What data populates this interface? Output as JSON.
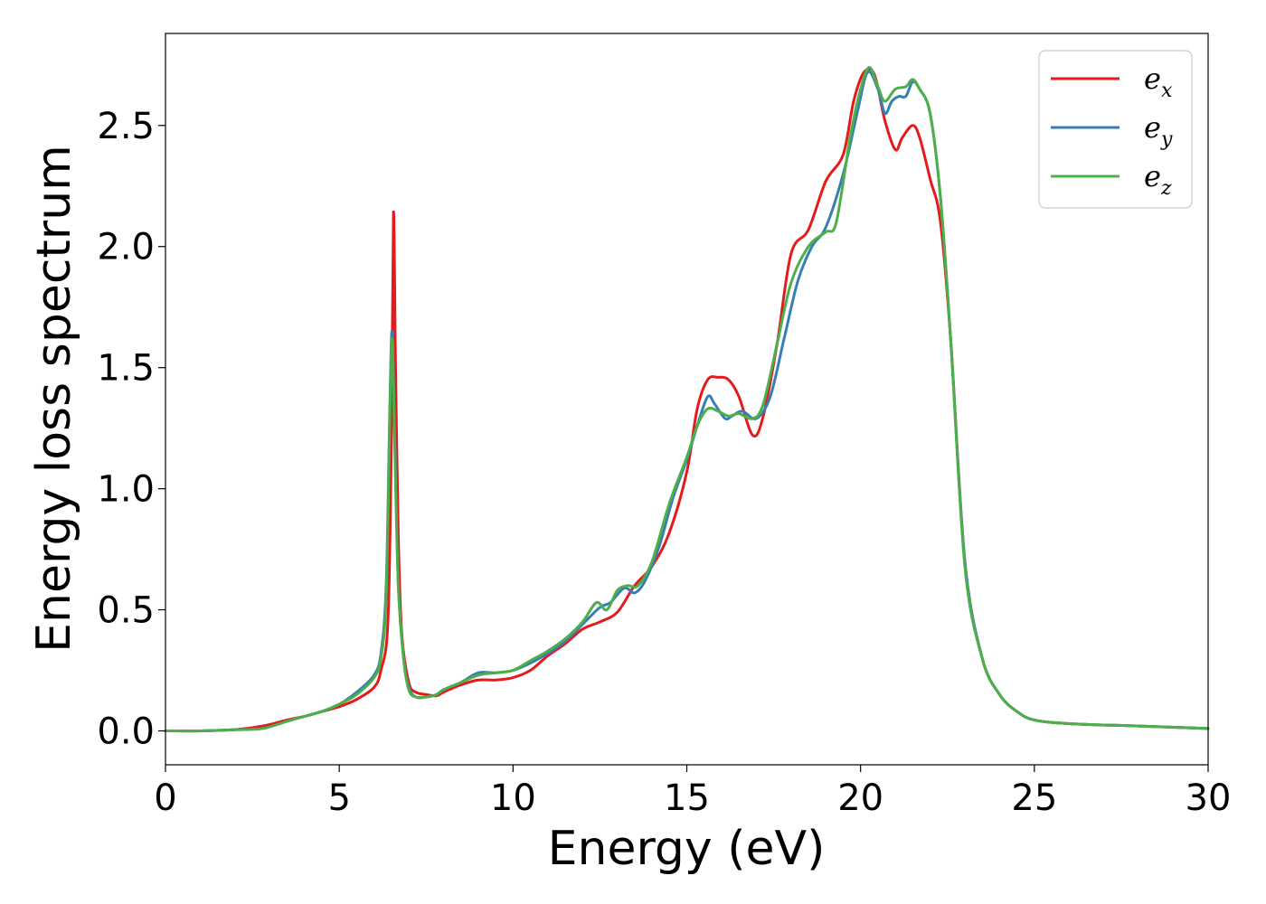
{
  "chart_data": {
    "type": "line",
    "title": "",
    "xlabel": "Energy (eV)",
    "ylabel": "Energy loss spectrum",
    "xlim": [
      0,
      30
    ],
    "ylim": [
      -0.14,
      2.88
    ],
    "xticks": [
      0,
      5,
      10,
      15,
      20,
      25,
      30
    ],
    "xtick_labels": [
      "0",
      "5",
      "10",
      "15",
      "20",
      "25",
      "30"
    ],
    "yticks": [
      0.0,
      0.5,
      1.0,
      1.5,
      2.0,
      2.5
    ],
    "ytick_labels": [
      "0.0",
      "0.5",
      "1.0",
      "1.5",
      "2.0",
      "2.5"
    ],
    "grid": false,
    "legend_position": "top-right",
    "series": [
      {
        "name": "e_x",
        "legend_base": "e",
        "legend_sub": "x",
        "color": "#e41a1c",
        "x": [
          0,
          1,
          2,
          2.8,
          3.5,
          4.0,
          4.5,
          5.0,
          5.5,
          6.0,
          6.2,
          6.4,
          6.5,
          6.56,
          6.62,
          6.7,
          6.8,
          7.0,
          7.2,
          7.5,
          7.8,
          8.0,
          8.5,
          9.0,
          9.5,
          10.0,
          10.5,
          11.0,
          11.5,
          12.0,
          12.5,
          13.0,
          13.5,
          14.0,
          14.5,
          15.0,
          15.3,
          15.6,
          15.9,
          16.2,
          16.5,
          16.9,
          17.2,
          17.6,
          18.0,
          18.5,
          19.0,
          19.5,
          19.8,
          20.1,
          20.4,
          20.7,
          21.0,
          21.2,
          21.5,
          21.7,
          22.0,
          22.3,
          22.6,
          23.0,
          23.5,
          24.0,
          24.5,
          25.0,
          26.0,
          28.0,
          30.0
        ],
        "y": [
          0.0,
          0.0,
          0.005,
          0.02,
          0.045,
          0.06,
          0.08,
          0.1,
          0.13,
          0.18,
          0.25,
          0.45,
          1.2,
          2.14,
          1.5,
          0.8,
          0.4,
          0.2,
          0.16,
          0.15,
          0.145,
          0.16,
          0.19,
          0.21,
          0.21,
          0.22,
          0.25,
          0.31,
          0.36,
          0.42,
          0.45,
          0.49,
          0.6,
          0.68,
          0.82,
          1.07,
          1.33,
          1.45,
          1.46,
          1.45,
          1.38,
          1.22,
          1.3,
          1.6,
          1.97,
          2.07,
          2.27,
          2.38,
          2.6,
          2.72,
          2.71,
          2.52,
          2.4,
          2.45,
          2.5,
          2.45,
          2.28,
          2.1,
          1.6,
          0.7,
          0.3,
          0.15,
          0.08,
          0.045,
          0.03,
          0.02,
          0.01
        ]
      },
      {
        "name": "e_y",
        "legend_base": "e",
        "legend_sub": "y",
        "color": "#377eb8",
        "x": [
          0,
          1,
          2,
          2.8,
          3.5,
          4.0,
          4.5,
          5.0,
          5.5,
          6.0,
          6.2,
          6.35,
          6.45,
          6.52,
          6.6,
          6.7,
          6.85,
          7.0,
          7.2,
          7.5,
          7.8,
          8.0,
          8.5,
          9.0,
          9.5,
          10.0,
          10.5,
          11.0,
          11.5,
          12.0,
          12.5,
          12.8,
          13.2,
          13.5,
          13.8,
          14.2,
          14.6,
          15.0,
          15.3,
          15.6,
          15.8,
          16.1,
          16.3,
          16.6,
          17.0,
          17.4,
          17.8,
          18.2,
          18.6,
          19.0,
          19.5,
          19.9,
          20.2,
          20.5,
          20.7,
          20.9,
          21.1,
          21.3,
          21.5,
          21.7,
          22.0,
          22.3,
          22.6,
          23.0,
          23.5,
          24.0,
          24.5,
          25.0,
          26.0,
          28.0,
          30.0
        ],
        "y": [
          0.0,
          0.0,
          0.005,
          0.01,
          0.04,
          0.06,
          0.08,
          0.11,
          0.16,
          0.23,
          0.32,
          0.6,
          1.3,
          1.65,
          1.2,
          0.6,
          0.3,
          0.18,
          0.14,
          0.14,
          0.15,
          0.17,
          0.2,
          0.24,
          0.24,
          0.25,
          0.28,
          0.32,
          0.37,
          0.44,
          0.51,
          0.53,
          0.59,
          0.57,
          0.62,
          0.76,
          0.96,
          1.12,
          1.26,
          1.38,
          1.35,
          1.29,
          1.3,
          1.32,
          1.29,
          1.38,
          1.62,
          1.86,
          2.0,
          2.08,
          2.3,
          2.55,
          2.72,
          2.65,
          2.55,
          2.6,
          2.62,
          2.62,
          2.68,
          2.65,
          2.55,
          2.2,
          1.6,
          0.7,
          0.3,
          0.15,
          0.08,
          0.045,
          0.03,
          0.02,
          0.01
        ]
      },
      {
        "name": "e_z",
        "legend_base": "e",
        "legend_sub": "z",
        "color": "#4daf4a",
        "x": [
          0,
          1,
          2,
          2.8,
          3.5,
          4.0,
          4.5,
          5.0,
          5.5,
          6.0,
          6.2,
          6.35,
          6.45,
          6.52,
          6.6,
          6.7,
          6.85,
          7.0,
          7.2,
          7.5,
          7.8,
          8.0,
          8.5,
          9.0,
          9.5,
          10.0,
          10.5,
          11.0,
          11.5,
          12.0,
          12.4,
          12.7,
          13.0,
          13.3,
          13.6,
          14.0,
          14.5,
          15.0,
          15.3,
          15.6,
          15.9,
          16.2,
          16.5,
          16.9,
          17.2,
          17.6,
          18.0,
          18.5,
          19.0,
          19.3,
          19.7,
          20.0,
          20.25,
          20.5,
          20.7,
          21.0,
          21.3,
          21.5,
          21.7,
          22.0,
          22.3,
          22.6,
          23.0,
          23.5,
          24.0,
          24.5,
          25.0,
          26.0,
          28.0,
          30.0
        ],
        "y": [
          0.0,
          0.0,
          0.005,
          0.01,
          0.04,
          0.06,
          0.08,
          0.11,
          0.15,
          0.22,
          0.3,
          0.55,
          1.25,
          1.62,
          1.15,
          0.6,
          0.3,
          0.17,
          0.14,
          0.14,
          0.15,
          0.17,
          0.2,
          0.23,
          0.24,
          0.25,
          0.29,
          0.33,
          0.38,
          0.45,
          0.53,
          0.5,
          0.58,
          0.6,
          0.6,
          0.7,
          0.94,
          1.13,
          1.26,
          1.33,
          1.32,
          1.3,
          1.31,
          1.29,
          1.35,
          1.6,
          1.85,
          2.0,
          2.06,
          2.1,
          2.45,
          2.65,
          2.74,
          2.66,
          2.6,
          2.65,
          2.66,
          2.69,
          2.65,
          2.55,
          2.2,
          1.6,
          0.68,
          0.3,
          0.15,
          0.08,
          0.045,
          0.03,
          0.02,
          0.01
        ]
      }
    ]
  }
}
